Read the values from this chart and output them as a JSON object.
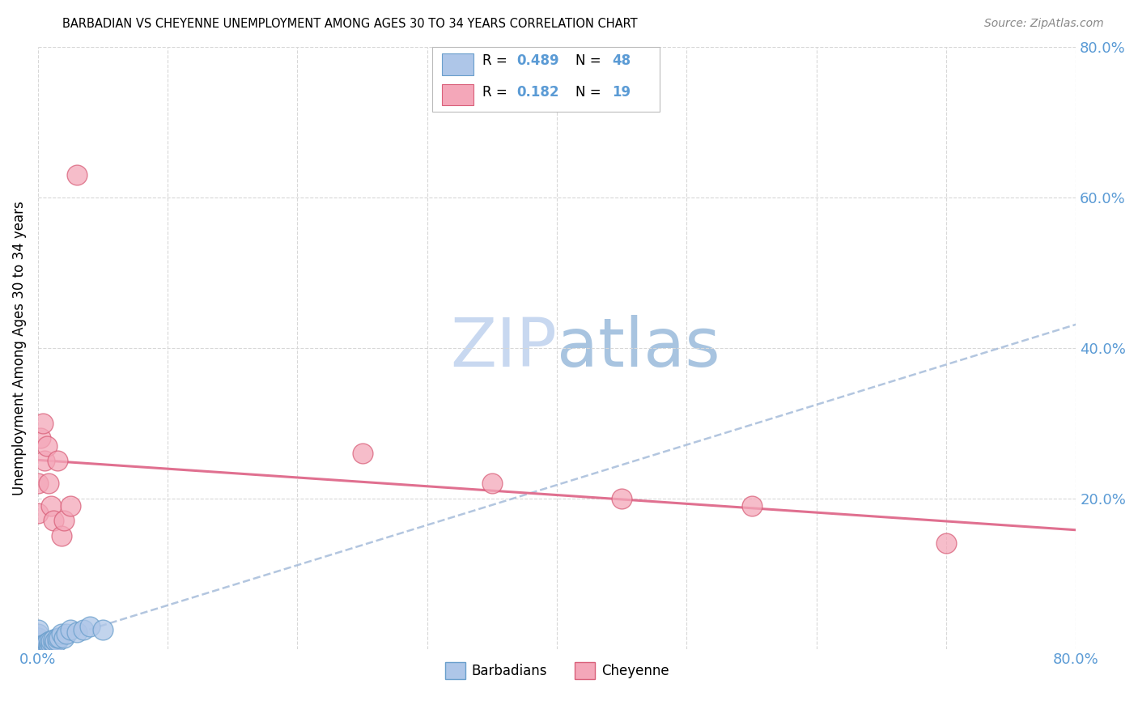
{
  "title": "BARBADIAN VS CHEYENNE UNEMPLOYMENT AMONG AGES 30 TO 34 YEARS CORRELATION CHART",
  "source": "Source: ZipAtlas.com",
  "ylabel": "Unemployment Among Ages 30 to 34 years",
  "xlim": [
    0.0,
    0.8
  ],
  "ylim": [
    0.0,
    0.8
  ],
  "xtick_labels_show": [
    "0.0%",
    "80.0%"
  ],
  "xtick_vals_show": [
    0.0,
    0.8
  ],
  "xtick_vals_grid": [
    0.1,
    0.2,
    0.3,
    0.4,
    0.5,
    0.6,
    0.7
  ],
  "ytick_labels": [
    "20.0%",
    "40.0%",
    "60.0%",
    "80.0%"
  ],
  "ytick_vals": [
    0.2,
    0.4,
    0.6,
    0.8
  ],
  "ytick_color": "#5B9BD5",
  "xtick_color": "#5B9BD5",
  "barbadian_color": "#AEC6E8",
  "cheyenne_color": "#F4A7B9",
  "barbadian_edge": "#6A9FCC",
  "cheyenne_edge": "#D9607A",
  "trend_barbadian_color": "#A0B8D8",
  "trend_cheyenne_color": "#E07090",
  "R_barbadian": 0.489,
  "N_barbadian": 48,
  "R_cheyenne": 0.182,
  "N_cheyenne": 19,
  "legend_color": "#5B9BD5",
  "watermark_zip": "ZIP",
  "watermark_atlas": "atlas",
  "watermark_color_zip": "#C8D8F0",
  "watermark_color_atlas": "#A8C8E0",
  "barbadian_x": [
    0.0,
    0.0,
    0.0,
    0.0,
    0.0,
    0.0,
    0.0,
    0.0,
    0.0,
    0.0,
    0.0,
    0.0,
    0.0,
    0.0,
    0.0,
    0.0,
    0.0,
    0.0,
    0.0,
    0.0,
    0.003,
    0.003,
    0.004,
    0.004,
    0.005,
    0.005,
    0.006,
    0.007,
    0.008,
    0.008,
    0.009,
    0.009,
    0.01,
    0.01,
    0.012,
    0.012,
    0.013,
    0.015,
    0.015,
    0.016,
    0.018,
    0.02,
    0.022,
    0.025,
    0.03,
    0.035,
    0.04,
    0.05
  ],
  "barbadian_y": [
    0.0,
    0.0,
    0.0,
    0.0,
    0.0,
    0.0,
    0.0,
    0.0,
    0.0,
    0.0,
    0.005,
    0.005,
    0.008,
    0.01,
    0.01,
    0.012,
    0.015,
    0.015,
    0.02,
    0.025,
    0.0,
    0.005,
    0.0,
    0.005,
    0.0,
    0.005,
    0.005,
    0.008,
    0.0,
    0.005,
    0.005,
    0.01,
    0.005,
    0.01,
    0.008,
    0.012,
    0.01,
    0.01,
    0.015,
    0.015,
    0.02,
    0.015,
    0.02,
    0.025,
    0.022,
    0.025,
    0.03,
    0.025
  ],
  "cheyenne_x": [
    0.0,
    0.0,
    0.002,
    0.004,
    0.005,
    0.007,
    0.008,
    0.01,
    0.012,
    0.015,
    0.018,
    0.02,
    0.025,
    0.03,
    0.25,
    0.35,
    0.45,
    0.55,
    0.7
  ],
  "cheyenne_y": [
    0.18,
    0.22,
    0.28,
    0.3,
    0.25,
    0.27,
    0.22,
    0.19,
    0.17,
    0.25,
    0.15,
    0.17,
    0.19,
    0.63,
    0.26,
    0.22,
    0.2,
    0.19,
    0.14
  ]
}
